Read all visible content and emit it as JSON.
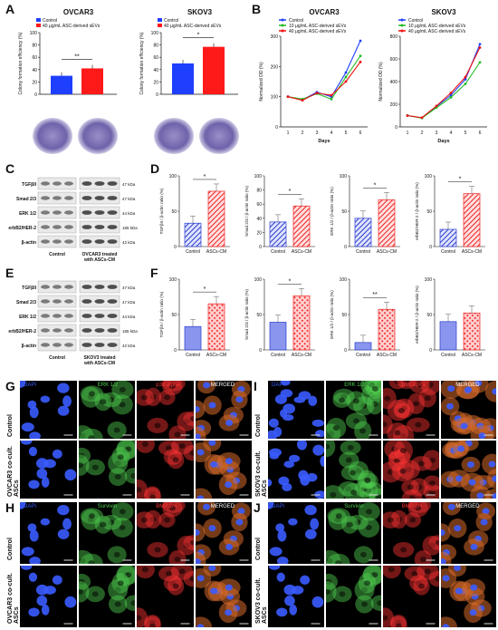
{
  "panels": {
    "A": "A",
    "B": "B",
    "C": "C",
    "D": "D",
    "E": "E",
    "F": "F",
    "G": "G",
    "H": "H",
    "I": "I",
    "J": "J"
  },
  "panelA": {
    "charts": [
      {
        "title": "OVCAR3",
        "ylabel": "Colony formation efficiency (%)",
        "ylim": [
          0,
          100
        ],
        "yticks": [
          "0",
          "20",
          "40",
          "60",
          "80",
          "100"
        ],
        "sig": "**",
        "values": [
          30,
          42
        ],
        "colors": [
          "#1f3fff",
          "#ff1a1a"
        ]
      },
      {
        "title": "SKOV3",
        "ylabel": "Colony formation efficiency (%)",
        "ylim": [
          0,
          100
        ],
        "yticks": [
          "0",
          "20",
          "40",
          "60",
          "80",
          "100"
        ],
        "sig": "*",
        "values": [
          50,
          77
        ],
        "colors": [
          "#1f3fff",
          "#ff1a1a"
        ]
      }
    ],
    "legend": [
      "Control",
      "40 μg/mL ASC-derived sEVs"
    ]
  },
  "panelB": {
    "charts": [
      {
        "title": "OVCAR3",
        "ylabel": "Normalized OD (%)",
        "xlabel": "Days",
        "ylim": [
          0,
          300
        ],
        "yticks": [
          "0",
          "100",
          "200",
          "300"
        ],
        "x": [
          "1",
          "2",
          "3",
          "4",
          "5",
          "6"
        ],
        "series": [
          {
            "name": "Control",
            "color": "#1f3fff",
            "values": [
              100,
              90,
              115,
              100,
              180,
              285
            ]
          },
          {
            "name": "10 μg/mL ASC-derived sEVs",
            "color": "#22bb22",
            "values": [
              100,
              92,
              110,
              92,
              165,
              235
            ]
          },
          {
            "name": "40 μg/mL ASC-derived sEVs",
            "color": "#ee1111",
            "values": [
              100,
              88,
              112,
              105,
              150,
              215
            ]
          }
        ]
      },
      {
        "title": "SKOV3",
        "ylabel": "Normalized OD (%)",
        "xlabel": "Days",
        "ylim": [
          0,
          800
        ],
        "yticks": [
          "0",
          "200",
          "400",
          "600",
          "800"
        ],
        "x": [
          "1",
          "2",
          "3",
          "4",
          "5",
          "6"
        ],
        "series": [
          {
            "name": "Control",
            "color": "#1f3fff",
            "values": [
              100,
              80,
              180,
              280,
              420,
              730
            ]
          },
          {
            "name": "10 μg/mL ASC-derived sEVs",
            "color": "#22bb22",
            "values": [
              100,
              78,
              170,
              260,
              380,
              570
            ]
          },
          {
            "name": "40 μg/mL ASC-derived sEVs",
            "color": "#ee1111",
            "values": [
              100,
              82,
              185,
              300,
              440,
              700
            ]
          }
        ]
      }
    ]
  },
  "blots": {
    "C": {
      "proteins": [
        "TGFβII",
        "Smad 2/3",
        "ERK 1/2",
        "erbB2/HER-2",
        "β-actin"
      ],
      "kda": [
        "47 kDa",
        "47 kDa",
        "44 kDa",
        "185 kDa",
        "42 kDa"
      ],
      "left": "Control",
      "right": "OVCAR3 treated with ASCs-CM"
    },
    "E": {
      "proteins": [
        "TGFβII",
        "Smad 2/3",
        "ERK 1/2",
        "erbB2/HER-2",
        "β-actin"
      ],
      "kda": [
        "47 kDa",
        "47 kDa",
        "44 kDa",
        "185 kDa",
        "42 kDa"
      ],
      "left": "Control",
      "right": "SKOV3 treated with ASCs-CM"
    }
  },
  "panelD": [
    {
      "ylabel": "TGFβII / β-actin ratio (%)",
      "yticks": [
        "0",
        "50",
        "100"
      ],
      "ymax": 100,
      "values": [
        38,
        90
      ],
      "sig": "*"
    },
    {
      "ylabel": "Smad 2/3 / β-actin ratio (%)",
      "yticks": [
        "0",
        "20",
        "40",
        "60",
        "80",
        "100"
      ],
      "ymax": 100,
      "values": [
        40,
        66
      ],
      "sig": "*"
    },
    {
      "ylabel": "ERK 1/2 / β-actin ratio (%)",
      "yticks": [
        "0",
        "50",
        "100"
      ],
      "ymax": 100,
      "values": [
        46,
        76
      ],
      "sig": "*"
    },
    {
      "ylabel": "erbB2/HER-2 / β-actin ratio (%)",
      "yticks": [
        "0",
        "50",
        "100"
      ],
      "ymax": 100,
      "values": [
        28,
        86
      ],
      "sig": "*"
    }
  ],
  "panelF": [
    {
      "ylabel": "TGFβII / β-actin ratio (%)",
      "yticks": [
        "0",
        "50",
        "100"
      ],
      "ymax": 100,
      "values": [
        38,
        75
      ],
      "sig": "*"
    },
    {
      "ylabel": "Smad 2/3 / β-actin ratio (%)",
      "yticks": [
        "0",
        "50",
        "100"
      ],
      "ymax": 100,
      "values": [
        45,
        88
      ],
      "sig": "*"
    },
    {
      "ylabel": "ERK 1/2 / β-actin ratio (%)",
      "yticks": [
        "0",
        "50",
        "100"
      ],
      "ymax": 100,
      "values": [
        12,
        66
      ],
      "sig": "**"
    },
    {
      "ylabel": "erbB2/HER-2 / β-actin ratio (%)",
      "yticks": [
        "0",
        "50",
        "100"
      ],
      "ymax": 100,
      "values": [
        46,
        60
      ],
      "sig": ""
    }
  ],
  "barCategories": [
    "Control",
    "ASCs-CM"
  ],
  "micro": {
    "G": {
      "cols": [
        "DAPI",
        "ERK 1/2",
        "p38 alpha",
        "MERGED"
      ],
      "rows": [
        "Control",
        "OVCAR3 co-cult. ASCs"
      ]
    },
    "H": {
      "cols": [
        "DAPI",
        "Survivin",
        "BMP 2/4",
        "MERGED"
      ],
      "rows": [
        "Control",
        "OVCAR3 co-cult. ASCs"
      ]
    },
    "I": {
      "cols": [
        "DAPI",
        "ERK 1/2",
        "p38 alpha",
        "MERGED"
      ],
      "rows": [
        "Control",
        "SKOV3 co-cult. ASCs"
      ]
    },
    "J": {
      "cols": [
        "DAPI",
        "Survivin",
        "BMP 2/4",
        "MERGED"
      ],
      "rows": [
        "Control",
        "SKOV3 co-cult. ASCs"
      ]
    }
  },
  "colors": {
    "blue": "#1f3fff",
    "red": "#ff1a1a",
    "green": "#22bb22",
    "dapi": "#3a5cff",
    "gfp": "#4fd04f",
    "rfp": "#ff3333"
  }
}
